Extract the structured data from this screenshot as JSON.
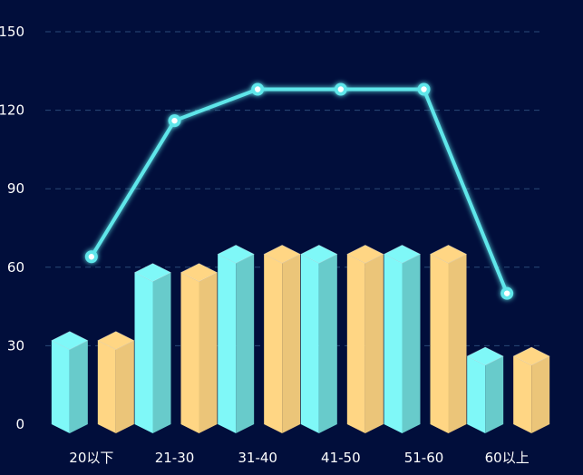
{
  "chart_data": {
    "type": "bar",
    "categories": [
      "20以下",
      "21-30",
      "31-40",
      "41-50",
      "51-60",
      "60以上"
    ],
    "series": [
      {
        "type": "bar",
        "color": "#7ff8f8",
        "values": [
          32,
          58,
          65,
          65,
          65,
          26
        ]
      },
      {
        "type": "bar",
        "color": "#ffd684",
        "values": [
          32,
          58,
          65,
          65,
          65,
          26
        ]
      },
      {
        "type": "line",
        "color": "#5fe6ea",
        "values": [
          64,
          116,
          128,
          128,
          128,
          50
        ]
      }
    ],
    "y_ticks": [
      "0",
      "30",
      "60",
      "90",
      "120",
      "150"
    ],
    "ylim": [
      0,
      150
    ],
    "grid": true,
    "grid_style": "dashed",
    "background": "#010e3b"
  }
}
